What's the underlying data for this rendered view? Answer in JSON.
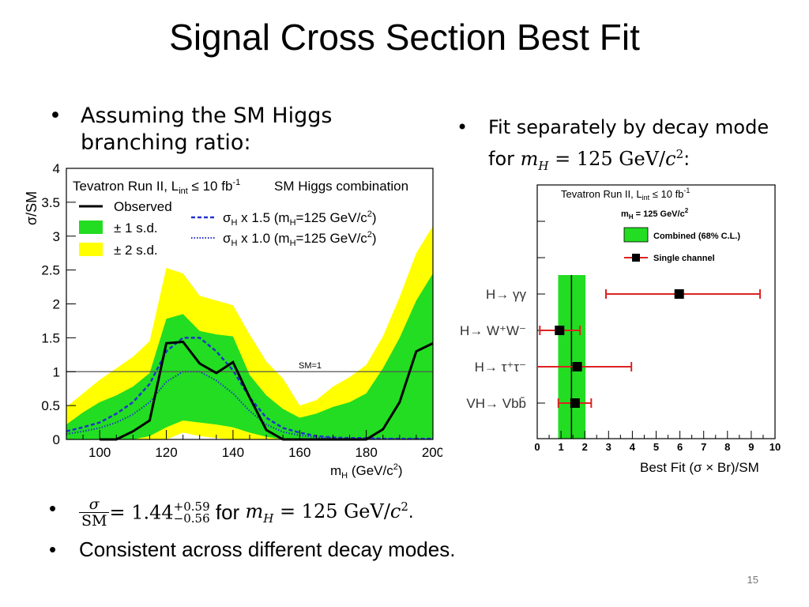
{
  "slide": {
    "title": "Signal Cross Section Best Fit",
    "page_number": "15",
    "bullet_glyph": "•"
  },
  "left_bullet": {
    "line1": "Assuming the SM Higgs",
    "line2": "branching ratio:"
  },
  "right_bullet": {
    "line1": "Fit separately by decay mode",
    "line2_prefix": "for",
    "mass_symbol": "m",
    "mass_sub": "H",
    "equals_value": " = 125 GeV/",
    "c": "c",
    "exp": "2",
    "suffix": ":"
  },
  "bottom_bullets": {
    "frac_num": "σ",
    "frac_den": "SM",
    "value": "= 1.44",
    "up_err": "+0.59",
    "down_err": "−0.56",
    "for_word": "for",
    "mass_symbol": "m",
    "mass_sub": "H",
    "equals_value": " = 125 GeV/",
    "c": "c",
    "exp": "2",
    "end": ".",
    "second": "Consistent across different decay modes."
  },
  "chart_data": [
    {
      "type": "line",
      "title": "Tevatron Run II, L",
      "title_sub": "int",
      "title_rest": " ≤ 10 fb",
      "title_sup": "-1",
      "title_right": "SM Higgs combination",
      "xlabel": "m",
      "xlabel_sub": "H",
      "xlabel_rest": " (GeV/c",
      "xlabel_sup": "2",
      "xlabel_end": ")",
      "ylabel": "σ/SM",
      "xlim": [
        90,
        200
      ],
      "ylim": [
        0,
        4
      ],
      "x_ticks": [
        100,
        120,
        140,
        160,
        180,
        200
      ],
      "y_ticks": [
        "0",
        "0.5",
        "1",
        "1.5",
        "2",
        "2.5",
        "3",
        "3.5",
        "4"
      ],
      "reference_line": {
        "y": 1,
        "label": "SM=1"
      },
      "legend": {
        "observed": "Observed",
        "band1": "± 1 s.d.",
        "band2": "± 2 s.d.",
        "sigma15_pre": "σ",
        "sigma15_sub": "H",
        "sigma15_rest": " x 1.5 (m",
        "sigma15_sub2": "H",
        "sigma15_rest2": "=125 GeV/c",
        "sigma15_sup": "2",
        "sigma15_end": ")",
        "sigma10_rest": " x 1.0 (m"
      },
      "x": [
        90,
        95,
        100,
        105,
        110,
        115,
        120,
        125,
        130,
        135,
        140,
        145,
        150,
        155,
        160,
        165,
        170,
        175,
        180,
        185,
        190,
        195,
        200
      ],
      "observed": [
        null,
        null,
        0.0,
        0.0,
        0.12,
        0.28,
        1.42,
        1.44,
        1.12,
        0.98,
        1.14,
        0.62,
        0.14,
        0.0,
        0.0,
        0.0,
        0.0,
        0.0,
        0.0,
        0.15,
        0.55,
        1.3,
        1.42
      ],
      "band2_upper": [
        0.48,
        0.68,
        0.88,
        1.05,
        1.22,
        1.45,
        2.53,
        2.45,
        2.12,
        2.05,
        1.98,
        1.55,
        1.15,
        0.9,
        0.5,
        0.58,
        0.78,
        0.92,
        1.1,
        1.52,
        2.1,
        2.75,
        3.15
      ],
      "band1_upper": [
        0.22,
        0.4,
        0.55,
        0.65,
        0.78,
        0.98,
        1.78,
        1.85,
        1.6,
        1.55,
        1.52,
        0.95,
        0.65,
        0.45,
        0.32,
        0.38,
        0.48,
        0.55,
        0.68,
        1.05,
        1.5,
        2.05,
        2.45
      ],
      "band1_lower": [
        0.0,
        0.0,
        0.0,
        0.0,
        0.0,
        0.05,
        0.18,
        0.28,
        0.25,
        0.22,
        0.18,
        0.1,
        0.04,
        0.0,
        0.0,
        0.0,
        0.0,
        0.0,
        0.0,
        0.0,
        0.0,
        0.0,
        0.0
      ],
      "band2_lower": [
        0.0,
        0.0,
        0.0,
        0.0,
        0.0,
        0.0,
        0.0,
        0.1,
        0.05,
        0.02,
        0.0,
        0.0,
        0.0,
        0.0,
        0.0,
        0.0,
        0.0,
        0.0,
        0.0,
        0.0,
        0.0,
        0.0,
        0.0
      ],
      "series": [
        {
          "name": "σH x 1.5 (mH=125 GeV/c2)",
          "style": "dashed",
          "color": "#2233cc",
          "values": [
            0.12,
            0.18,
            0.25,
            0.38,
            0.55,
            0.82,
            1.3,
            1.5,
            1.5,
            1.3,
            1.02,
            0.62,
            0.32,
            0.17,
            0.1,
            0.05,
            0.03,
            0.02,
            0.02,
            0.01,
            0.01,
            0.01,
            0.01
          ]
        },
        {
          "name": "σH x 1.0 (mH=125 GeV/c2)",
          "style": "dotted",
          "color": "#2233cc",
          "values": [
            0.08,
            0.12,
            0.17,
            0.25,
            0.37,
            0.55,
            0.85,
            1.0,
            1.0,
            0.87,
            0.68,
            0.42,
            0.22,
            0.11,
            0.06,
            0.03,
            0.02,
            0.01,
            0.01,
            0.01,
            0.01,
            0.01,
            0.01
          ]
        }
      ],
      "colors": {
        "band1": "#22dd22",
        "band2": "#ffff00",
        "observed": "#000000",
        "expected": "#2233cc"
      }
    },
    {
      "type": "scatter",
      "title": "Tevatron Run II, L",
      "title_sub": "int",
      "title_rest": " ≤ 10 fb",
      "title_sup": "-1",
      "subtitle_pre": "m",
      "subtitle_sub": "H",
      "subtitle_rest": " = 125 GeV/c",
      "subtitle_sup": "2",
      "xlabel": "Best Fit (σ × Br)/SM",
      "xlim": [
        0,
        10
      ],
      "x_ticks": [
        "0",
        "1",
        "2",
        "3",
        "4",
        "5",
        "6",
        "7",
        "8",
        "9",
        "10"
      ],
      "legend": {
        "combined": "Combined (68% C.L.)",
        "single": "Single channel"
      },
      "combined": {
        "center": 1.44,
        "low": 0.88,
        "high": 2.03
      },
      "channels": [
        {
          "label": "H→ γγ",
          "value": 5.97,
          "low": 2.89,
          "high": 9.37
        },
        {
          "label": "H→ W⁺W⁻",
          "value": 0.94,
          "low": 0.11,
          "high": 1.8
        },
        {
          "label": "H→ τ⁺τ⁻",
          "value": 1.68,
          "low": 0.0,
          "high": 3.96
        },
        {
          "label": "VH→ Vbb̄",
          "value": 1.59,
          "low": 0.89,
          "high": 2.27
        }
      ],
      "colors": {
        "band": "#22dd22",
        "error": "#dd2222",
        "marker": "#000000"
      }
    }
  ]
}
